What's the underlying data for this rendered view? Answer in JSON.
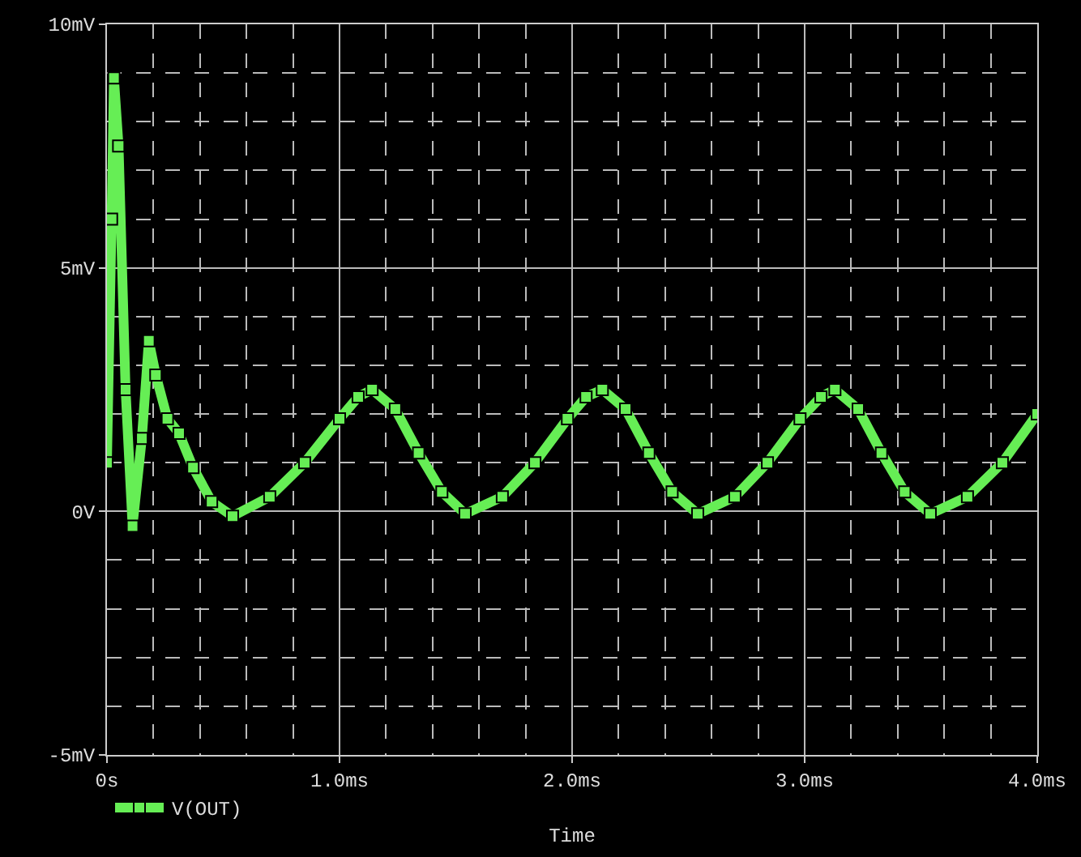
{
  "chart_data": {
    "type": "line",
    "xlabel": "Time",
    "x": [
      0,
      0.02,
      0.03,
      0.05,
      0.08,
      0.11,
      0.15,
      0.18,
      0.21,
      0.26,
      0.31,
      0.37,
      0.45,
      0.54,
      0.7,
      0.85,
      1.0,
      1.08,
      1.14,
      1.24,
      1.34,
      1.44,
      1.54,
      1.7,
      1.84,
      1.98,
      2.06,
      2.13,
      2.23,
      2.33,
      2.43,
      2.54,
      2.7,
      2.84,
      2.98,
      3.07,
      3.13,
      3.23,
      3.33,
      3.43,
      3.54,
      3.7,
      3.85,
      4.0
    ],
    "series": [
      {
        "name": "V(OUT)",
        "color": "#66ee55",
        "values": [
          1.0,
          6.0,
          8.9,
          7.5,
          2.5,
          -0.3,
          1.5,
          3.5,
          2.8,
          1.9,
          1.6,
          0.9,
          0.2,
          -0.1,
          0.3,
          1.0,
          1.9,
          2.35,
          2.5,
          2.1,
          1.2,
          0.4,
          -0.05,
          0.3,
          1.0,
          1.9,
          2.35,
          2.5,
          2.1,
          1.2,
          0.4,
          -0.05,
          0.3,
          1.0,
          1.9,
          2.35,
          2.5,
          2.1,
          1.2,
          0.4,
          -0.05,
          0.3,
          1.0,
          2.0
        ]
      }
    ],
    "xlim": [
      0,
      4.0
    ],
    "xticks": [
      {
        "value": 0,
        "label": "0s"
      },
      {
        "value": 0.2,
        "label": null
      },
      {
        "value": 0.4,
        "label": null
      },
      {
        "value": 0.6,
        "label": null
      },
      {
        "value": 0.8,
        "label": null
      },
      {
        "value": 1.0,
        "label": "1.0ms"
      },
      {
        "value": 1.2,
        "label": null
      },
      {
        "value": 1.4,
        "label": null
      },
      {
        "value": 1.6,
        "label": null
      },
      {
        "value": 1.8,
        "label": null
      },
      {
        "value": 2.0,
        "label": "2.0ms"
      },
      {
        "value": 2.2,
        "label": null
      },
      {
        "value": 2.4,
        "label": null
      },
      {
        "value": 2.6,
        "label": null
      },
      {
        "value": 2.8,
        "label": null
      },
      {
        "value": 3.0,
        "label": "3.0ms"
      },
      {
        "value": 3.2,
        "label": null
      },
      {
        "value": 3.4,
        "label": null
      },
      {
        "value": 3.6,
        "label": null
      },
      {
        "value": 3.8,
        "label": null
      },
      {
        "value": 4.0,
        "label": "4.0ms"
      }
    ],
    "ylim": [
      -5,
      10
    ],
    "yticks": [
      {
        "value": -5,
        "label": "-5mV"
      },
      {
        "value": -4,
        "label": null
      },
      {
        "value": -3,
        "label": null
      },
      {
        "value": -2,
        "label": null
      },
      {
        "value": -1,
        "label": null
      },
      {
        "value": 0,
        "label": "0V"
      },
      {
        "value": 1,
        "label": null
      },
      {
        "value": 2,
        "label": null
      },
      {
        "value": 3,
        "label": null
      },
      {
        "value": 4,
        "label": null
      },
      {
        "value": 5,
        "label": "5mV"
      },
      {
        "value": 6,
        "label": null
      },
      {
        "value": 7,
        "label": null
      },
      {
        "value": 8,
        "label": null
      },
      {
        "value": 9,
        "label": null
      },
      {
        "value": 10,
        "label": "10mV"
      }
    ],
    "grid": true,
    "legend": "bottom left",
    "marker": "square",
    "line_style": "solid"
  }
}
